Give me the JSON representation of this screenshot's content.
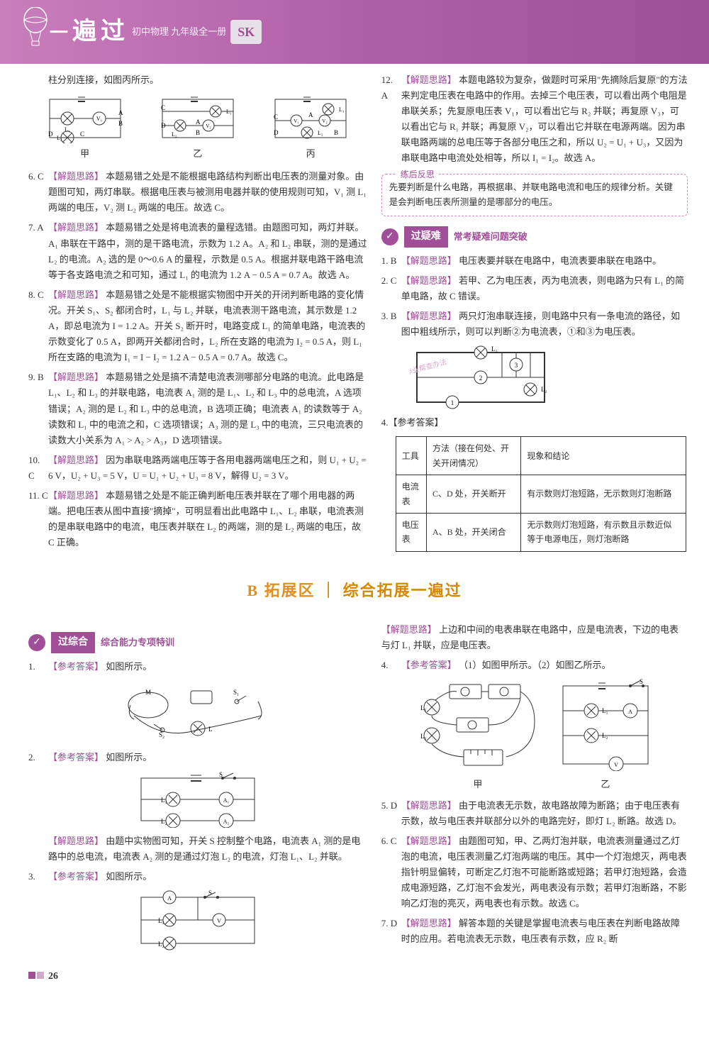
{
  "header": {
    "title_yi": "一",
    "title_bian": "遍",
    "title_guo": "过",
    "subtitle": "初中物理 九年级全一册",
    "badge": "SK"
  },
  "left_intro": "柱分别连接，如图丙所示。",
  "circuits": {
    "jia": "甲",
    "yi": "乙",
    "bing": "丙"
  },
  "left_items": [
    {
      "num": "6. C",
      "tag": "【解题思路】",
      "text": "本题易错之处是不能根据电路结构判断出电压表的测量对象。由题图可知，两灯串联。根据电压表与被测用电器并联的使用规则可知，V₁ 测 L₁ 两端的电压，V₂ 测 L₂ 两端的电压。故选 C。"
    },
    {
      "num": "7. A",
      "tag": "【解题思路】",
      "text": "本题易错之处是将电流表的量程选错。由题图可知，两灯并联。A₁ 串联在干路中，测的是干路电流，示数为 1.2 A。A₂ 和 L₂ 串联，测的是通过 L₂ 的电流。A₂ 选的是 0～0.6 A 的量程，示数是 0.5 A。根据并联电路干路电流等于各支路电流之和可知，通过 L₁ 的电流为 1.2 A − 0.5 A = 0.7 A。故选 A。"
    },
    {
      "num": "8. C",
      "tag": "【解题思路】",
      "text": "本题易错之处是不能根据实物图中开关的开闭判断电路的变化情况。开关 S₁、S₂ 都闭合时，L₁ 与 L₂ 并联，电流表测干路电流，其示数是 1.2 A，即总电流为 I = 1.2 A。开关 S₂ 断开时，电路变成 L₁ 的简单电路，电流表的示数变化了 0.5 A，即两开关都闭合时，L₂ 所在支路的电流为 I₂ = 0.5 A，则 L₁ 所在支路的电流为 I₁ = I − I₂ = 1.2 A − 0.5 A = 0.7 A。故选 C。"
    },
    {
      "num": "9. B",
      "tag": "【解题思路】",
      "text": "本题易错之处是搞不清楚电流表测哪部分电路的电流。此电路是 L₁、L₂ 和 L₃ 的并联电路，电流表 A₁ 测的是 L₁、L₂ 和 L₃ 中的总电流，A 选项错误；A₂ 测的是 L₂ 和 L₃ 中的总电流，B 选项正确；电流表 A₁ 的读数等于 A₂ 读数和 L₁ 中的电流之和，C 选项错误；A₃ 测的是 L₃ 中的电流，三只电流表的读数大小关系为 A₁ > A₂ > A₃，D 选项错误。"
    },
    {
      "num": "10. C",
      "tag": "【解题思路】",
      "text": "因为串联电路两端电压等于各用电器两端电压之和，则 U₁ + U₂ = 6 V，U₂ + U₃ = 5 V，U = U₁ + U₂ + U₃ = 8 V，解得 U₂ = 3 V。"
    },
    {
      "num": "11. C",
      "tag": "【解题思路】",
      "text": "本题易错之处是不能正确判断电压表并联在了哪个用电器的两端。把电压表从图中直接\"摘掉\"，可明显看出此电路中 L₁、L₂ 串联，电流表测的是串联电路中的电流，电压表并联在 L₂ 的两端，测的是 L₂ 两端的电压，故 C 正确。"
    }
  ],
  "right_top": {
    "num": "12. A",
    "tag": "【解题思路】",
    "text": "本题电路较为复杂，做题时可采用\"先摘除后复原\"的方法来判定电压表在电路中的作用。去掉三个电压表，可以看出两个电阻是串联关系；先复原电压表 V₁，可以看出它与 R₂ 并联；再复原 V₃，可以看出它与 R₁ 并联；再复原 V₂，可以看出它并联在电源两端。因为串联电路两端的总电压等于各部分电压之和，所以 U₂ = U₁ + U₃，又因为串联电路中电流处处相等，所以 I₁ = I₂。故选 A。"
  },
  "reflect": {
    "label": "练后反思",
    "text": "先要判断是什么电路，再根据串、并联电路电流和电压的规律分析。关键是会判断电压表所测量的是哪部分的电压。"
  },
  "section_yinan": {
    "title": "过疑难",
    "subtitle": "常考疑难问题突破"
  },
  "yinan_items": [
    {
      "num": "1. B",
      "tag": "【解题思路】",
      "text": "电压表要并联在电路中，电流表要串联在电路中。"
    },
    {
      "num": "2. C",
      "tag": "【解题思路】",
      "text": "若甲、乙为电压表，丙为电流表，则电路为只有 L₁ 的简单电路，故 C 错误。"
    },
    {
      "num": "3. B",
      "tag": "【解题思路】",
      "text": "两只灯泡串联连接，则电路中只有一条电流的路径，如图中粗线所示，则可以判断②为电流表，①和③为电压表。"
    }
  ],
  "q4_label": "4.【参考答案】",
  "table": {
    "headers": [
      "工具",
      "方法（接在何处、开关开闭情况）",
      "现象和结论"
    ],
    "rows": [
      [
        "电流表",
        "C、D 处，开关断开",
        "有示数则灯泡短路，无示数则灯泡断路"
      ],
      [
        "电压表",
        "A、B 处，开关闭合",
        "无示数则灯泡短路，有示数且示数近似等于电源电压，则灯泡断路"
      ]
    ]
  },
  "big_section": {
    "prefix": "B 拓展区",
    "divider": "｜",
    "title": "综合拓展一遍过"
  },
  "section_zonghe": {
    "title": "过综合",
    "subtitle": "综合能力专项特训"
  },
  "zonghe_left": [
    {
      "num": "1.",
      "label": "【参考答案】",
      "text": "如图所示。"
    },
    {
      "num": "2.",
      "label": "【参考答案】",
      "text": "如图所示。"
    }
  ],
  "zonghe_left_q2_explain": {
    "tag": "【解题思路】",
    "text": "由题中实物图可知，开关 S 控制整个电路，电流表 A₁ 测的是电路中的总电流，电流表 A₂ 测的是通过灯泡 L₂ 的电流，灯泡 L₁、L₂ 并联。"
  },
  "zonghe_left_q3": {
    "num": "3.",
    "label": "【参考答案】",
    "text": "如图所示。"
  },
  "zonghe_right_intro": {
    "tag": "【解题思路】",
    "text": "上边和中间的电表串联在电路中，应是电流表，下边的电表与灯 L₁ 并联，应是电压表。"
  },
  "zonghe_right_q4": {
    "num": "4.",
    "label": "【参考答案】",
    "text": "（1）如图甲所示。（2）如图乙所示。"
  },
  "zonghe_right_jia_yi": {
    "jia": "甲",
    "yi": "乙"
  },
  "zonghe_right_items": [
    {
      "num": "5. D",
      "tag": "【解题思路】",
      "text": "由于电流表无示数，故电路故障为断路；由于电压表有示数，故与电压表并联部分以外的电路完好，即灯 L₂ 断路。故选 D。"
    },
    {
      "num": "6. C",
      "tag": "【解题思路】",
      "text": "由题图可知，甲、乙两灯泡并联，电流表测量通过乙灯泡的电流，电压表测量乙灯泡两端的电压。其中一个灯泡熄灭，两电表指针明显偏转，可断定乙灯泡不可能断路或短路；若甲灯泡短路，会造成电源短路，乙灯泡不会发光，两电表没有示数；若甲灯泡断路，不影响乙灯泡的亮灭，两电表也有示数。故选 C。"
    },
    {
      "num": "7. D",
      "tag": "【解题思路】",
      "text": "解答本题的关键是掌握电流表与电压表在判断电路故障时的应用。若电流表无示数，电压表有示数，应 R₂ 断"
    }
  ],
  "page_number": "26",
  "colors": {
    "brand": "#a04e98",
    "orange": "#d48900"
  }
}
